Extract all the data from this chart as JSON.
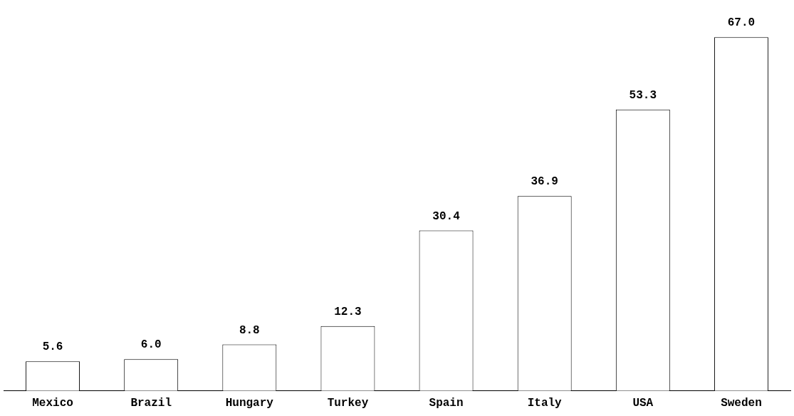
{
  "chart_data": {
    "type": "bar",
    "categories": [
      "Mexico",
      "Brazil",
      "Hungary",
      "Turkey",
      "Spain",
      "Italy",
      "USA",
      "Sweden"
    ],
    "values": [
      5.6,
      6.0,
      8.8,
      12.3,
      30.4,
      36.9,
      53.3,
      67.0
    ],
    "value_labels": [
      "5.6",
      "6.0",
      "8.8",
      "12.3",
      "30.4",
      "36.9",
      "53.3",
      "67.0"
    ],
    "color": "#ffffff",
    "grid": false,
    "legend": false,
    "tick_labels": "x"
  }
}
